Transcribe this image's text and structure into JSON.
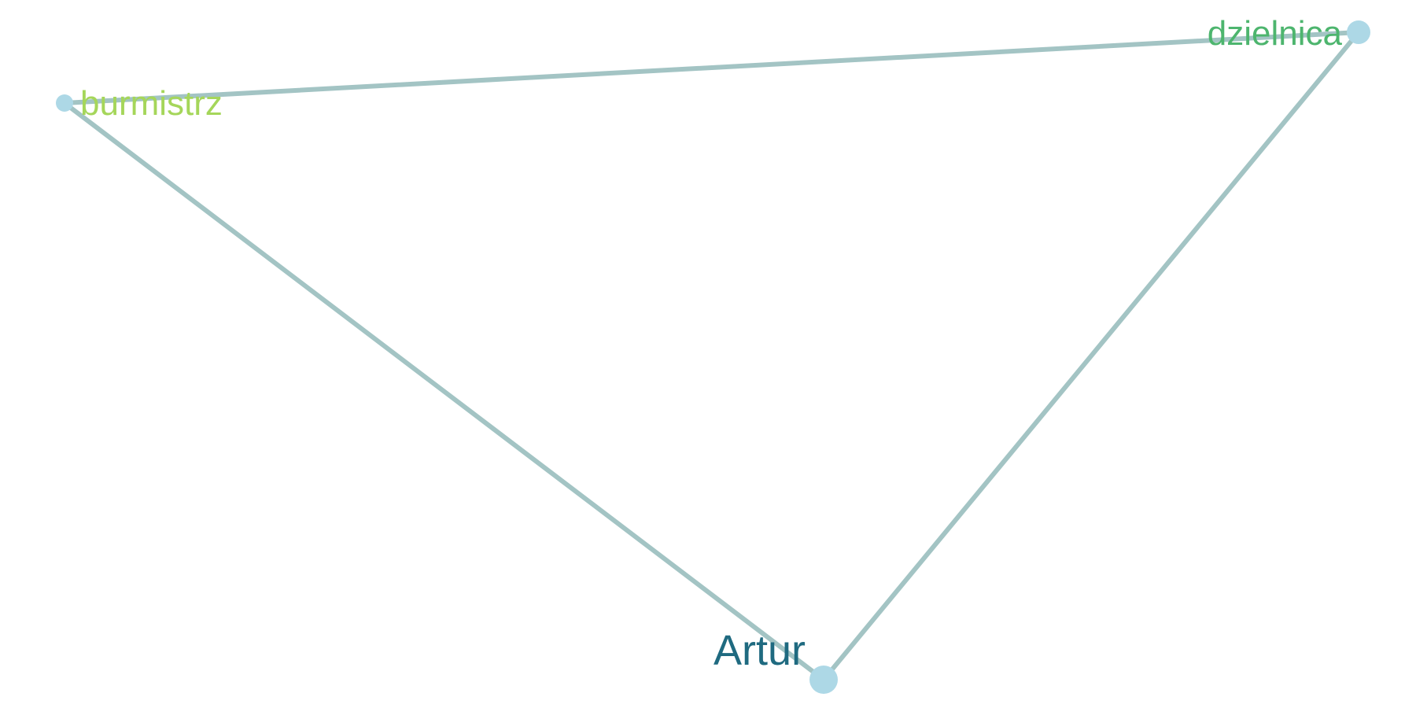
{
  "graph": {
    "edge_color": "#a3c4c4",
    "node_color": "#add8e6",
    "nodes": [
      {
        "id": "burmistrz",
        "label": "burmistrz",
        "label_color": "#a5d65a"
      },
      {
        "id": "dzielnica",
        "label": "dzielnica",
        "label_color": "#4db56e"
      },
      {
        "id": "artur",
        "label": "Artur",
        "label_color": "#1f6a80"
      }
    ],
    "edges": [
      {
        "source": "burmistrz",
        "target": "dzielnica"
      },
      {
        "source": "burmistrz",
        "target": "artur"
      },
      {
        "source": "dzielnica",
        "target": "artur"
      }
    ]
  }
}
